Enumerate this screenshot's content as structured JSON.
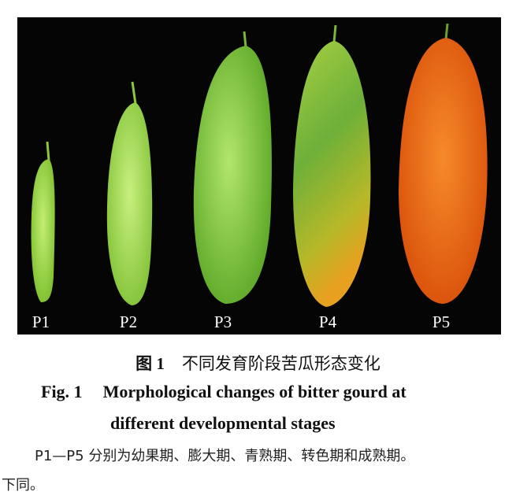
{
  "figure": {
    "labels": [
      "P1",
      "P2",
      "P3",
      "P4",
      "P5"
    ],
    "colors": {
      "background": "#050505",
      "p1": "#9fd64a",
      "p2": "#a6d855",
      "p3": "#86c642",
      "p4": "#9fbf2c",
      "p5": "#ee6a12"
    }
  },
  "caption": {
    "cn_number": "图 1",
    "cn_title": "不同发育阶段苦瓜形态变化",
    "en_number": "Fig. 1",
    "en_title_line1": "Morphological changes of bitter gourd at",
    "en_title_line2": "different developmental stages",
    "note_line1": "P1—P5 分别为幼果期、膨大期、青熟期、转色期和成熟期。",
    "note_line2": "下同。"
  }
}
